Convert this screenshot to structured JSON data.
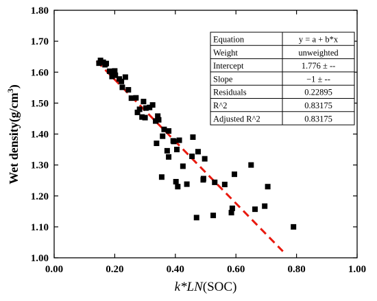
{
  "chart_data": {
    "type": "scatter",
    "xlabel": {
      "pre": "k*",
      "mid": "LN",
      "post": "(SOC)"
    },
    "ylabel": {
      "main": "Wet density",
      "unit": "(g/cm",
      "sup": "3",
      "close": ")"
    },
    "xlim": [
      0.0,
      1.0
    ],
    "ylim": [
      1.0,
      1.8
    ],
    "x_ticks": [
      "0.00",
      "0.20",
      "0.40",
      "0.60",
      "0.80",
      "1.00"
    ],
    "y_ticks": [
      "1.00",
      "1.10",
      "1.20",
      "1.30",
      "1.40",
      "1.50",
      "1.60",
      "1.70",
      "1.80"
    ],
    "fit_line": {
      "x": [
        0.14,
        0.755
      ],
      "y": [
        1.636,
        1.021
      ],
      "color": "#e8190e"
    },
    "marker_color": "#000000",
    "points": [
      [
        0.148,
        1.629
      ],
      [
        0.153,
        1.638
      ],
      [
        0.162,
        1.632
      ],
      [
        0.172,
        1.628
      ],
      [
        0.168,
        1.624
      ],
      [
        0.183,
        1.603
      ],
      [
        0.191,
        1.586
      ],
      [
        0.194,
        1.6
      ],
      [
        0.2,
        1.604
      ],
      [
        0.202,
        1.59
      ],
      [
        0.215,
        1.578
      ],
      [
        0.222,
        1.57
      ],
      [
        0.225,
        1.551
      ],
      [
        0.235,
        1.584
      ],
      [
        0.245,
        1.543
      ],
      [
        0.255,
        1.516
      ],
      [
        0.27,
        1.517
      ],
      [
        0.275,
        1.47
      ],
      [
        0.282,
        1.48
      ],
      [
        0.29,
        1.455
      ],
      [
        0.295,
        1.505
      ],
      [
        0.3,
        1.453
      ],
      [
        0.303,
        1.484
      ],
      [
        0.315,
        1.486
      ],
      [
        0.325,
        1.494
      ],
      [
        0.335,
        1.442
      ],
      [
        0.342,
        1.458
      ],
      [
        0.345,
        1.446
      ],
      [
        0.338,
        1.37
      ],
      [
        0.355,
        1.261
      ],
      [
        0.358,
        1.393
      ],
      [
        0.363,
        1.415
      ],
      [
        0.373,
        1.346
      ],
      [
        0.378,
        1.41
      ],
      [
        0.378,
        1.326
      ],
      [
        0.393,
        1.378
      ],
      [
        0.395,
        1.376
      ],
      [
        0.402,
        1.246
      ],
      [
        0.405,
        1.35
      ],
      [
        0.408,
        1.23
      ],
      [
        0.413,
        1.38
      ],
      [
        0.425,
        1.296
      ],
      [
        0.438,
        1.238
      ],
      [
        0.455,
        1.328
      ],
      [
        0.458,
        1.39
      ],
      [
        0.47,
        1.13
      ],
      [
        0.475,
        1.343
      ],
      [
        0.492,
        1.252
      ],
      [
        0.493,
        1.256
      ],
      [
        0.497,
        1.32
      ],
      [
        0.525,
        1.137
      ],
      [
        0.53,
        1.244
      ],
      [
        0.563,
        1.237
      ],
      [
        0.585,
        1.146
      ],
      [
        0.588,
        1.16
      ],
      [
        0.595,
        1.27
      ],
      [
        0.65,
        1.3
      ],
      [
        0.663,
        1.157
      ],
      [
        0.695,
        1.167
      ],
      [
        0.705,
        1.23
      ],
      [
        0.79,
        1.1
      ]
    ],
    "stats_table": [
      [
        "Equation",
        "y = a + b*x"
      ],
      [
        "Weight",
        "unweighted"
      ],
      [
        "Intercept",
        "1.776 ± --"
      ],
      [
        "Slope",
        "−1 ± --"
      ],
      [
        "Residuals",
        "0.22895"
      ],
      [
        "R^2",
        "0.83175"
      ],
      [
        "Adjusted R^2",
        "0.83175"
      ]
    ]
  }
}
